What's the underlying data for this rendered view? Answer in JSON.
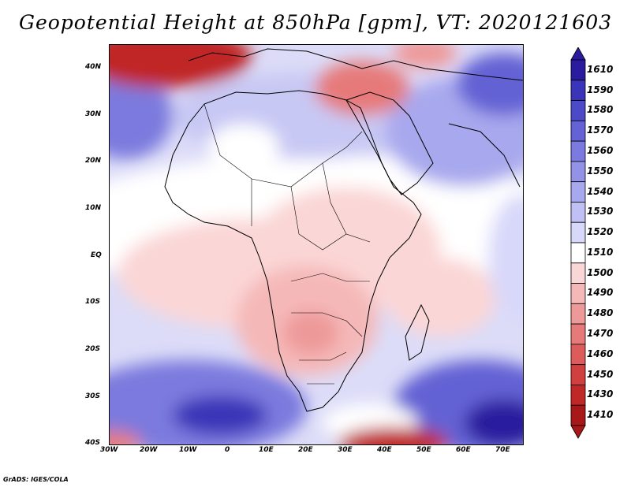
{
  "title": "Geopotential Height at 850hPa [gpm], VT: 2020121603",
  "credit": "GrADS: IGES/COLA",
  "axes": {
    "y_ticks": [
      "40N",
      "30N",
      "20N",
      "10N",
      "EQ",
      "10S",
      "20S",
      "30S",
      "40S"
    ],
    "x_ticks": [
      "30W",
      "20W",
      "10W",
      "0",
      "10E",
      "20E",
      "30E",
      "40E",
      "50E",
      "60E",
      "70E"
    ]
  },
  "colorbar": {
    "levels": [
      "1610",
      "1590",
      "1580",
      "1570",
      "1560",
      "1550",
      "1540",
      "1530",
      "1520",
      "1510",
      "1500",
      "1490",
      "1480",
      "1470",
      "1460",
      "1450",
      "1430",
      "1410"
    ],
    "colors": [
      "#2b1b9e",
      "#3a34b8",
      "#4d4ac8",
      "#6462d4",
      "#7b7ade",
      "#9392e6",
      "#a8a8ee",
      "#c0c0f4",
      "#d8d8fa",
      "#ffffff",
      "#fbd6d6",
      "#f5b8b8",
      "#ee9999",
      "#e67a7a",
      "#dc5c5c",
      "#d04040",
      "#c02828",
      "#a81818"
    ]
  }
}
